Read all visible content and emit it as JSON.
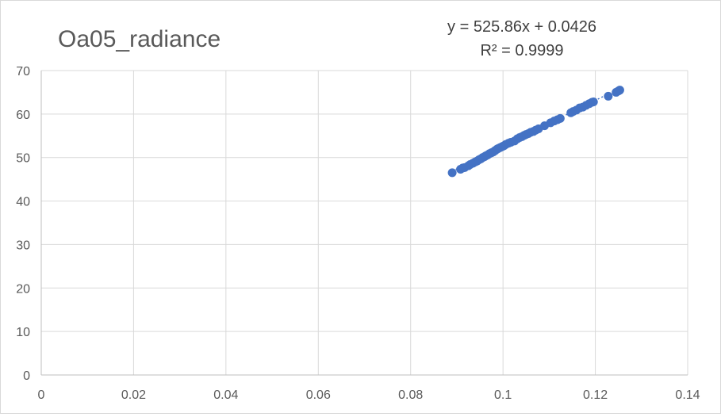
{
  "chart_data": {
    "type": "scatter",
    "title": "Oa05_radiance",
    "xlabel": "",
    "ylabel": "",
    "xlim": [
      0,
      0.14
    ],
    "ylim": [
      0,
      70
    ],
    "x_ticks": [
      0,
      0.02,
      0.04,
      0.06,
      0.08,
      0.1,
      0.12,
      0.14
    ],
    "y_ticks": [
      0,
      10,
      20,
      30,
      40,
      50,
      60,
      70
    ],
    "x_tick_labels": [
      "0",
      "0.02",
      "0.04",
      "0.06",
      "0.08",
      "0.1",
      "0.12",
      "0.14"
    ],
    "y_tick_labels": [
      "0",
      "10",
      "20",
      "30",
      "40",
      "50",
      "60",
      "70"
    ],
    "grid": true,
    "legend": "none",
    "marker_color": "#4472C4",
    "trendline": {
      "type": "linear",
      "slope": 525.86,
      "intercept": 0.0426,
      "equation_label": "y = 525.86x + 0.0426",
      "r2_label": "R² = 0.9999",
      "color": "#4472C4"
    },
    "series": [
      {
        "x": [
          0.089,
          0.0908,
          0.0913,
          0.0917,
          0.0925,
          0.0929,
          0.0935,
          0.094,
          0.0944,
          0.0948,
          0.0952,
          0.0956,
          0.096,
          0.0963,
          0.0967,
          0.0971,
          0.0975,
          0.0979,
          0.0983,
          0.0987,
          0.099,
          0.0994,
          0.0998,
          0.1002,
          0.1006,
          0.1012,
          0.1017,
          0.1025,
          0.1031,
          0.1036,
          0.1041,
          0.1046,
          0.105,
          0.1055,
          0.106,
          0.1066,
          0.1071,
          0.1077,
          0.109,
          0.1103,
          0.1111,
          0.1118,
          0.1124,
          0.1147,
          0.1152,
          0.1159,
          0.1166,
          0.1173,
          0.118,
          0.1187,
          0.1193,
          0.1196,
          0.1228,
          0.1245,
          0.125,
          0.1253
        ],
        "y": [
          46.5,
          47.3,
          47.6,
          47.7,
          48.1,
          48.4,
          48.7,
          49.0,
          49.2,
          49.5,
          49.7,
          50.0,
          50.2,
          50.4,
          50.6,
          50.9,
          51.1,
          51.3,
          51.6,
          51.9,
          52.1,
          52.3,
          52.5,
          52.7,
          53.0,
          53.3,
          53.5,
          53.8,
          54.3,
          54.6,
          54.8,
          55.1,
          55.3,
          55.5,
          55.8,
          56.0,
          56.3,
          56.6,
          57.3,
          58.0,
          58.4,
          58.7,
          59.0,
          60.3,
          60.6,
          60.9,
          61.4,
          61.6,
          62.0,
          62.4,
          62.7,
          62.8,
          64.1,
          65.0,
          65.3,
          65.5
        ]
      }
    ]
  }
}
